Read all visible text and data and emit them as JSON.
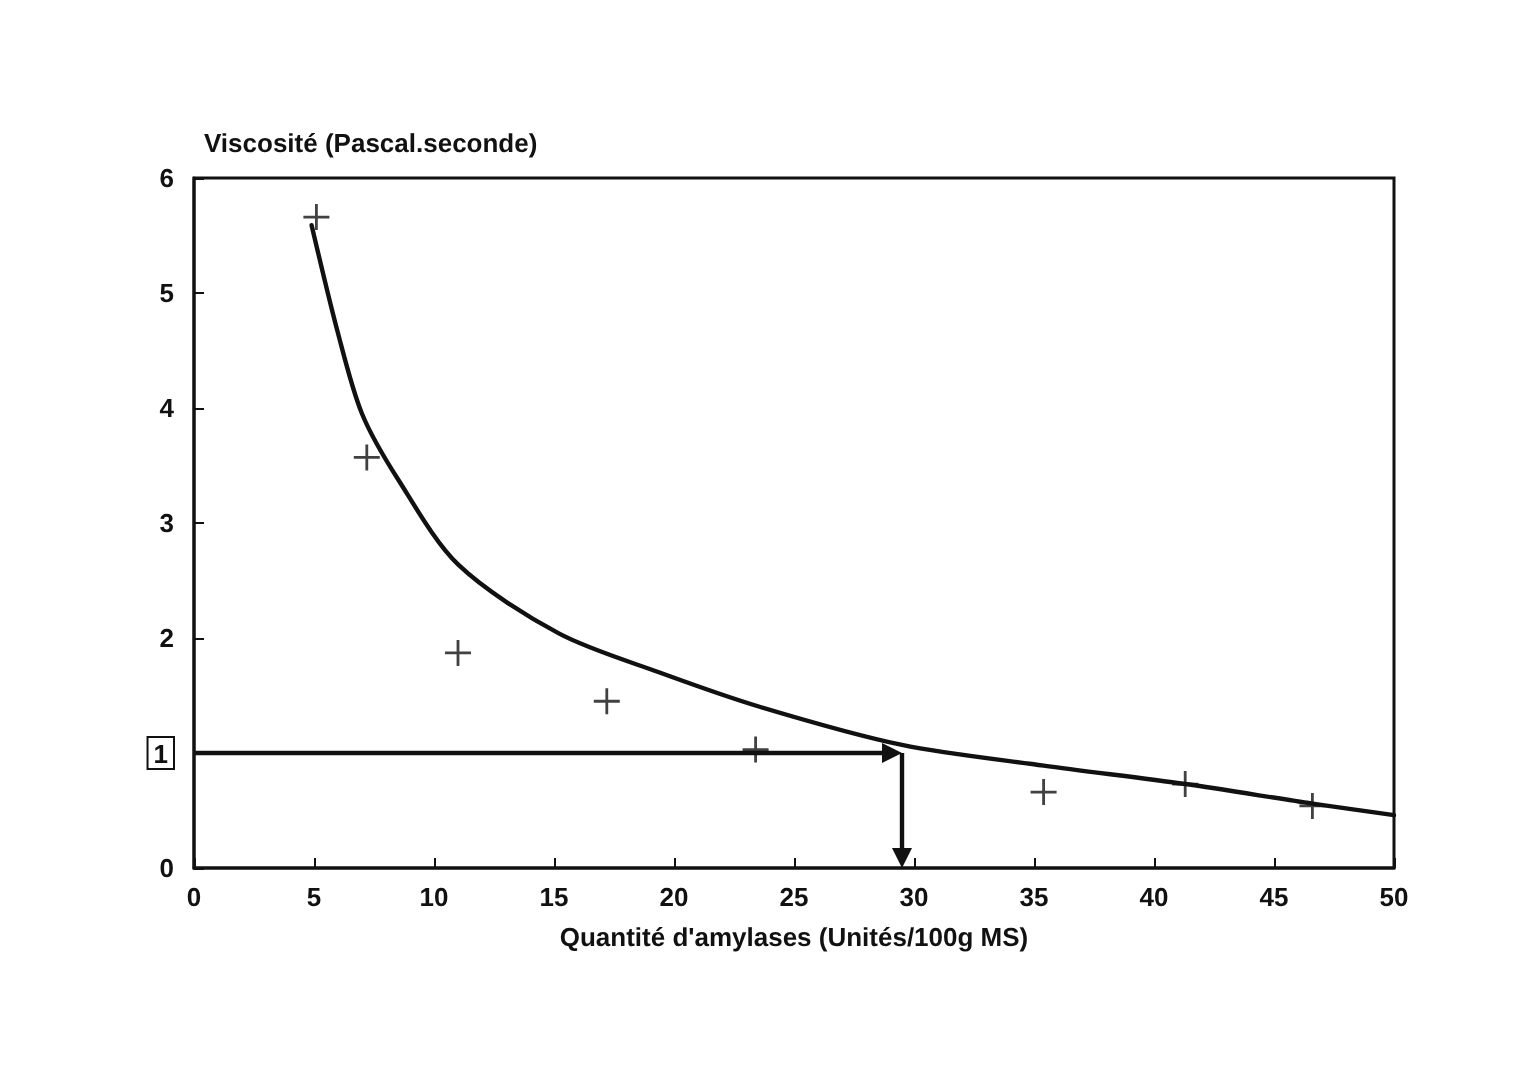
{
  "chart_data": {
    "type": "scatter",
    "xlabel": "Quantité d'amylases (Unités/100g MS)",
    "ylabel": "Viscosité (Pascal.seconde)",
    "xlim": [
      0,
      50
    ],
    "xticks": [
      0,
      5,
      10,
      15,
      20,
      25,
      30,
      35,
      40,
      45,
      50
    ],
    "ylim": [
      0,
      6
    ],
    "yticks": [
      0,
      1,
      2,
      3,
      4,
      5,
      6
    ],
    "grid": false,
    "series": [
      {
        "marker": "cross",
        "color": "#111111",
        "x": [
          5.1,
          7.2,
          11.0,
          17.2,
          23.4,
          35.4,
          41.3,
          46.6
        ],
        "values": [
          5.66,
          3.57,
          1.87,
          1.45,
          1.03,
          0.66,
          0.73,
          0.54
        ]
      },
      {
        "type": "line",
        "marker": "none",
        "line_style": "solid",
        "color": "#111111",
        "x": [
          4.9,
          6,
          7,
          8.5,
          11,
          15.2,
          19.4,
          23.6,
          29.5,
          35.4,
          41.3,
          46.6,
          50
        ],
        "values": [
          5.59,
          4.65,
          3.95,
          3.38,
          2.64,
          2.04,
          1.7,
          1.4,
          1.07,
          0.89,
          0.73,
          0.56,
          0.46
        ]
      }
    ],
    "ref_lines": [
      {
        "axis": "y",
        "value": 1,
        "color": "#111111"
      },
      {
        "axis": "x",
        "value": 29.5,
        "color": "#111111"
      }
    ]
  }
}
